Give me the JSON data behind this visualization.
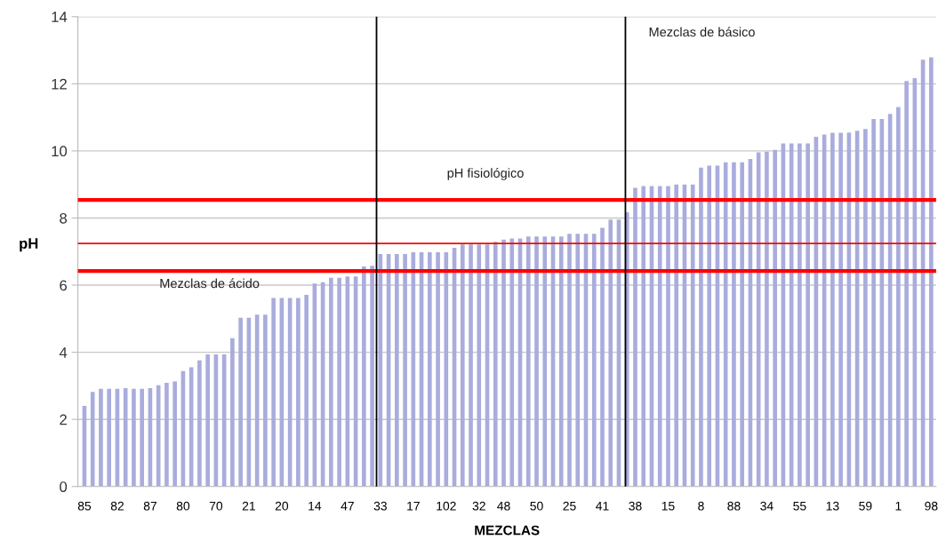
{
  "chart_data": {
    "type": "bar",
    "xlabel": "MEZCLAS",
    "ylabel": "pH",
    "categories": [
      "85",
      null,
      null,
      null,
      "82",
      null,
      null,
      null,
      "87",
      null,
      null,
      null,
      "80",
      null,
      null,
      null,
      "70",
      null,
      null,
      null,
      "21",
      null,
      null,
      null,
      "20",
      null,
      null,
      null,
      "14",
      null,
      null,
      null,
      "47",
      null,
      null,
      null,
      "33",
      null,
      null,
      null,
      "17",
      null,
      null,
      null,
      "102",
      null,
      null,
      null,
      "32",
      null,
      null,
      "48",
      null,
      null,
      null,
      "50",
      null,
      null,
      null,
      "25",
      null,
      null,
      null,
      "41",
      null,
      null,
      null,
      "38",
      null,
      null,
      null,
      "15",
      null,
      null,
      null,
      "8",
      null,
      null,
      null,
      "88",
      null,
      null,
      null,
      "34",
      null,
      null,
      null,
      "55",
      null,
      null,
      null,
      "13",
      null,
      null,
      null,
      "59",
      null,
      null,
      null,
      "1",
      null,
      null,
      null,
      "98"
    ],
    "values": [
      2.4,
      2.82,
      2.91,
      2.91,
      2.91,
      2.93,
      2.91,
      2.91,
      2.93,
      3.02,
      3.09,
      3.13,
      3.44,
      3.55,
      3.76,
      3.94,
      3.94,
      3.94,
      4.42,
      5.03,
      5.03,
      5.12,
      5.12,
      5.62,
      5.62,
      5.62,
      5.62,
      5.71,
      6.05,
      6.09,
      6.22,
      6.22,
      6.26,
      6.26,
      6.56,
      6.58,
      6.93,
      6.93,
      6.93,
      6.93,
      6.98,
      6.98,
      6.98,
      6.98,
      6.98,
      7.11,
      7.21,
      7.21,
      7.21,
      7.21,
      7.29,
      7.36,
      7.39,
      7.39,
      7.45,
      7.45,
      7.45,
      7.45,
      7.45,
      7.53,
      7.53,
      7.53,
      7.53,
      7.71,
      7.95,
      7.95,
      8.17,
      8.9,
      8.95,
      8.95,
      8.95,
      8.95,
      9.0,
      9.0,
      9.0,
      9.5,
      9.56,
      9.56,
      9.66,
      9.66,
      9.66,
      9.76,
      9.96,
      9.98,
      10.03,
      10.22,
      10.22,
      10.22,
      10.22,
      10.42,
      10.49,
      10.54,
      10.54,
      10.55,
      10.6,
      10.65,
      10.95,
      10.95,
      11.1,
      11.31,
      12.08,
      12.17,
      12.72,
      12.79
    ],
    "color": "#a9acdc",
    "ylim": [
      0,
      14
    ],
    "yticks": [
      0,
      2,
      4,
      6,
      8,
      10,
      12,
      14
    ],
    "grid": "y",
    "ref_lines": [
      {
        "axis": "y",
        "value": 8.54,
        "color": "#ff0000"
      },
      {
        "axis": "y",
        "value": 7.24,
        "color": "#ff0000"
      },
      {
        "axis": "y",
        "value": 6.42,
        "color": "#ff0000"
      }
    ],
    "annotations": [
      "Mezclas de ácido",
      "pH fisiológico",
      "Mezclas de básico"
    ]
  }
}
